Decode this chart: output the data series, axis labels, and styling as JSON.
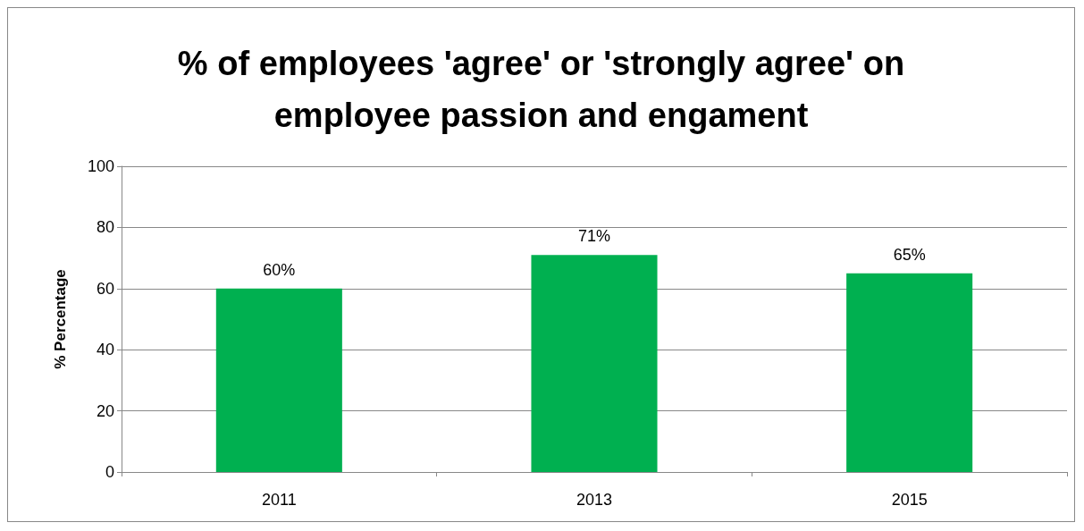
{
  "chart_data": {
    "type": "bar",
    "title": "% of employees 'agree' or 'strongly agree' on\nemployee passion and engament",
    "ylabel": "% Percentage",
    "categories": [
      "2011",
      "2013",
      "2015"
    ],
    "values": [
      60,
      71,
      65
    ],
    "color": "#00b050",
    "value_labels": [
      "60%",
      "71%",
      "65%"
    ],
    "ylim": [
      0,
      100
    ],
    "yticks": [
      0,
      20,
      40,
      60,
      80,
      100
    ],
    "grid": "y"
  }
}
